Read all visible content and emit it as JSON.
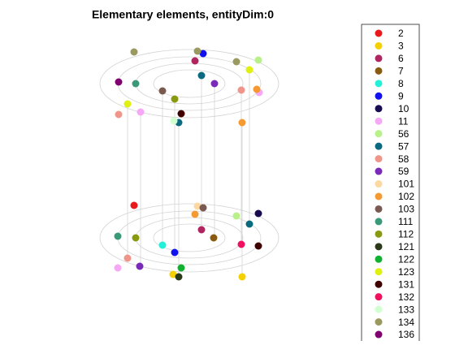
{
  "chart_data": {
    "type": "scatter",
    "title": "Elementary elements, entityDim:0",
    "xlim": [
      0,
      560
    ],
    "ylim": [
      420,
      0
    ],
    "legend": "right",
    "series": [
      {
        "name": "2",
        "color": "#e8191a",
        "x": [
          165
        ],
        "y": [
          253
        ]
      },
      {
        "name": "3",
        "color": "#f5d000",
        "x": [
          213,
          298
        ],
        "y": [
          338,
          341
        ]
      },
      {
        "name": "6",
        "color": "#b0245f",
        "x": [
          240,
          248
        ],
        "y": [
          75,
          283
        ]
      },
      {
        "name": "7",
        "color": "#8a5a10",
        "x": [
          263
        ],
        "y": [
          293
        ]
      },
      {
        "name": "8",
        "color": "#22f0d8",
        "x": [
          200
        ],
        "y": [
          302
        ]
      },
      {
        "name": "9",
        "color": "#1010f0",
        "x": [
          250,
          215
        ],
        "y": [
          66,
          311
        ]
      },
      {
        "name": "10",
        "color": "#1a0a50",
        "x": [
          318
        ],
        "y": [
          263
        ]
      },
      {
        "name": "11",
        "color": "#f5a8f5",
        "x": [
          173,
          145,
          319
        ],
        "y": [
          138,
          330,
          114
        ]
      },
      {
        "name": "56",
        "color": "#b8f08a",
        "x": [
          318,
          291
        ],
        "y": [
          74,
          266
        ]
      },
      {
        "name": "57",
        "color": "#0a6a80",
        "x": [
          248,
          307,
          220
        ],
        "y": [
          93,
          276,
          151
        ]
      },
      {
        "name": "58",
        "color": "#f0958a",
        "x": [
          146,
          157,
          297
        ],
        "y": [
          141,
          318,
          111
        ]
      },
      {
        "name": "59",
        "color": "#7a2ab8",
        "x": [
          264,
          172
        ],
        "y": [
          103,
          328
        ]
      },
      {
        "name": "101",
        "color": "#fcd9a0",
        "x": [
          243
        ],
        "y": [
          254
        ]
      },
      {
        "name": "102",
        "color": "#f59a30",
        "x": [
          240,
          316,
          298
        ],
        "y": [
          264,
          110,
          151
        ]
      },
      {
        "name": "103",
        "color": "#7a5a50",
        "x": [
          200,
          250
        ],
        "y": [
          112,
          256
        ]
      },
      {
        "name": "111",
        "color": "#3a9a78",
        "x": [
          167,
          145
        ],
        "y": [
          103,
          291
        ]
      },
      {
        "name": "112",
        "color": "#8a9a10",
        "x": [
          215,
          167
        ],
        "y": [
          122,
          293
        ]
      },
      {
        "name": "121",
        "color": "#2a3a18",
        "x": [
          220
        ],
        "y": [
          341
        ]
      },
      {
        "name": "122",
        "color": "#10b030",
        "x": [
          223
        ],
        "y": [
          330
        ]
      },
      {
        "name": "123",
        "color": "#e0f010",
        "x": [
          157,
          307
        ],
        "y": [
          128,
          86
        ]
      },
      {
        "name": "131",
        "color": "#400000",
        "x": [
          223,
          318
        ],
        "y": [
          140,
          303
        ]
      },
      {
        "name": "132",
        "color": "#f01060",
        "x": [
          297
        ],
        "y": [
          301
        ]
      },
      {
        "name": "133",
        "color": "#d0ffd0",
        "x": [
          214
        ],
        "y": [
          149
        ]
      },
      {
        "name": "134",
        "color": "#9a9a60",
        "x": [
          165,
          243,
          291
        ],
        "y": [
          64,
          63,
          76
        ]
      },
      {
        "name": "136",
        "color": "#800070",
        "x": [
          146
        ],
        "y": [
          101
        ]
      }
    ]
  }
}
